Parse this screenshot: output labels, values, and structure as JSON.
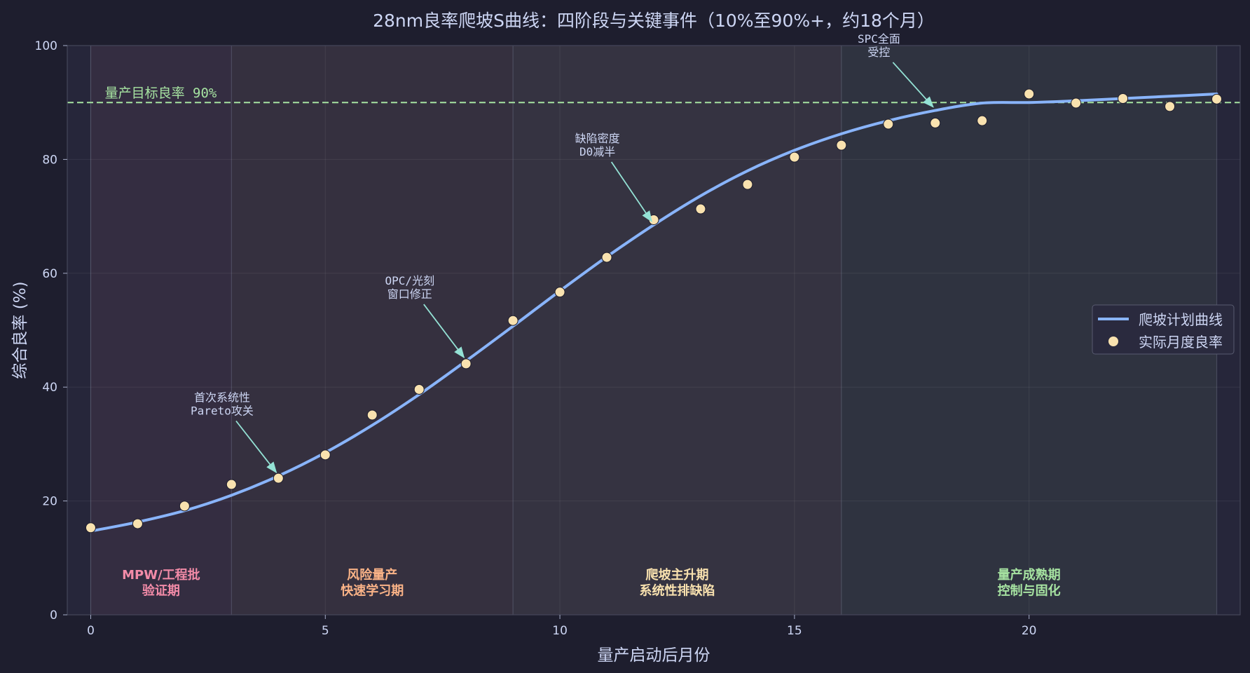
{
  "chart_data": {
    "type": "line",
    "title": "28nm良率爬坡S曲线：四阶段与关键事件（10%至90%+，约18个月）",
    "xlabel": "量产启动后月份",
    "ylabel": "综合良率 (%)",
    "xlim": [
      -0.5,
      24.5
    ],
    "ylim": [
      0,
      100
    ],
    "xticks": [
      0,
      5,
      10,
      15,
      20
    ],
    "yticks": [
      0,
      20,
      40,
      60,
      80,
      100
    ],
    "grid": true,
    "legend_position": "center-right",
    "series": [
      {
        "name": "爬坡计划曲线",
        "kind": "line",
        "color": "#89b4fa",
        "x": [
          0,
          1,
          2,
          3,
          4,
          5,
          6,
          7,
          8,
          9,
          10,
          11,
          12,
          13,
          14,
          15,
          16,
          17,
          18,
          19,
          20,
          21,
          22,
          23,
          24
        ],
        "y": [
          14.7,
          16.3,
          18.3,
          21.0,
          24.4,
          28.5,
          33.3,
          38.7,
          44.6,
          50.7,
          56.9,
          62.9,
          68.5,
          73.6,
          78.0,
          81.6,
          84.5,
          86.8,
          88.6,
          89.9,
          90.0,
          90.3,
          90.7,
          91.1,
          91.5
        ]
      },
      {
        "name": "实际月度良率",
        "kind": "scatter",
        "color": "#f9e2af",
        "x": [
          0,
          1,
          2,
          3,
          4,
          5,
          6,
          7,
          8,
          9,
          10,
          11,
          12,
          13,
          14,
          15,
          16,
          17,
          18,
          19,
          20,
          21,
          22,
          23,
          24
        ],
        "y": [
          15.3,
          16.0,
          19.1,
          22.9,
          24.0,
          28.1,
          35.1,
          39.6,
          44.1,
          51.7,
          56.7,
          62.8,
          69.4,
          71.3,
          75.6,
          80.4,
          82.5,
          86.2,
          86.4,
          86.8,
          91.5,
          89.9,
          90.7,
          89.3,
          90.6
        ]
      }
    ],
    "target_line": {
      "y": 90,
      "label": "量产目标良率 90%",
      "color": "#a6e3a1"
    },
    "phases": [
      {
        "x0": 0,
        "x1": 3,
        "line1": "MPW/工程批",
        "line2": "验证期",
        "color": "#f38ba8"
      },
      {
        "x0": 3,
        "x1": 9,
        "line1": "风险量产",
        "line2": "快速学习期",
        "color": "#fab387"
      },
      {
        "x0": 9,
        "x1": 16,
        "line1": "爬坡主升期",
        "line2": "系统性排缺陷",
        "color": "#f9e2af"
      },
      {
        "x0": 16,
        "x1": 24,
        "line1": "量产成熟期",
        "line2": "控制与固化",
        "color": "#a6e3a1"
      }
    ],
    "annotations": [
      {
        "line1": "首次系统性",
        "line2": "Pareto攻关",
        "x": 4,
        "y": 24.4,
        "tx": 2.8,
        "ty": 37.5
      },
      {
        "line1": "OPC/光刻",
        "line2": "窗口修正",
        "x": 8,
        "y": 44.6,
        "tx": 6.8,
        "ty": 58
      },
      {
        "line1": "缺陷密度",
        "line2": "D0减半",
        "x": 12,
        "y": 68.5,
        "tx": 10.8,
        "ty": 83
      },
      {
        "line1": "SPC全面",
        "line2": "受控",
        "x": 18,
        "y": 88.6,
        "tx": 16.8,
        "ty": 100.5
      }
    ]
  }
}
